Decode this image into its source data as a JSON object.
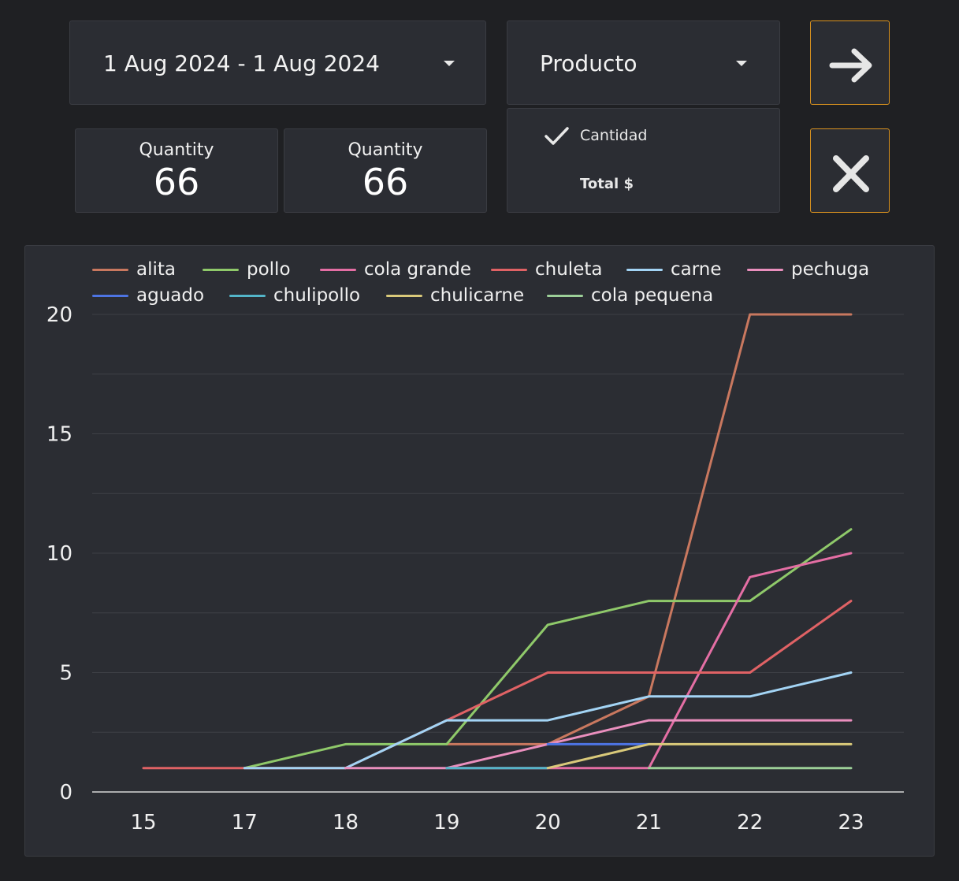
{
  "date_range": {
    "label": "1 Aug 2024 - 1 Aug 2024"
  },
  "dimension_select": {
    "label": "Producto",
    "options": [
      {
        "label": "Cantidad",
        "checked": true
      },
      {
        "label": "Total $",
        "checked": false
      }
    ]
  },
  "actions": {
    "go_icon": "arrow-right-icon",
    "close_icon": "close-icon",
    "accent": "#d9921f"
  },
  "scorecards": [
    {
      "label": "Quantity",
      "value": "66"
    },
    {
      "label": "Quantity",
      "value": "66"
    }
  ],
  "chart_data": {
    "type": "line",
    "x": [
      15,
      17,
      18,
      19,
      20,
      21,
      22,
      23
    ],
    "x_tick_labels": [
      "15",
      "17",
      "18",
      "19",
      "20",
      "21",
      "22",
      "23"
    ],
    "y_ticks": [
      0,
      5,
      10,
      15,
      20
    ],
    "ylim": [
      0,
      20
    ],
    "grid": true,
    "legend_position": "top",
    "series": [
      {
        "name": "alita",
        "color": "#c9785f",
        "values": [
          null,
          null,
          null,
          2,
          2,
          4,
          20,
          20
        ]
      },
      {
        "name": "pollo",
        "color": "#8fc96a",
        "values": [
          null,
          1,
          2,
          2,
          7,
          8,
          8,
          11
        ]
      },
      {
        "name": "cola grande",
        "color": "#e46ea4",
        "values": [
          null,
          null,
          null,
          1,
          1,
          1,
          9,
          10
        ]
      },
      {
        "name": "chuleta",
        "color": "#e06265",
        "values": [
          1,
          1,
          1,
          3,
          5,
          5,
          5,
          8
        ]
      },
      {
        "name": "carne",
        "color": "#a3d4f5",
        "values": [
          null,
          1,
          1,
          3,
          3,
          4,
          4,
          5
        ]
      },
      {
        "name": "pechuga",
        "color": "#ea8fbe",
        "values": [
          null,
          null,
          1,
          1,
          2,
          3,
          3,
          3
        ]
      },
      {
        "name": "aguado",
        "color": "#4d74e3",
        "values": [
          null,
          null,
          null,
          null,
          2,
          2,
          null,
          null
        ]
      },
      {
        "name": "chulipollo",
        "color": "#53b5c9",
        "values": [
          null,
          null,
          null,
          1,
          1,
          null,
          null,
          null
        ]
      },
      {
        "name": "chulicarne",
        "color": "#d9c97a",
        "values": [
          null,
          null,
          null,
          null,
          1,
          2,
          2,
          2
        ]
      },
      {
        "name": "cola pequena",
        "color": "#9ccf98",
        "values": [
          null,
          null,
          null,
          null,
          null,
          1,
          1,
          1
        ]
      }
    ]
  }
}
